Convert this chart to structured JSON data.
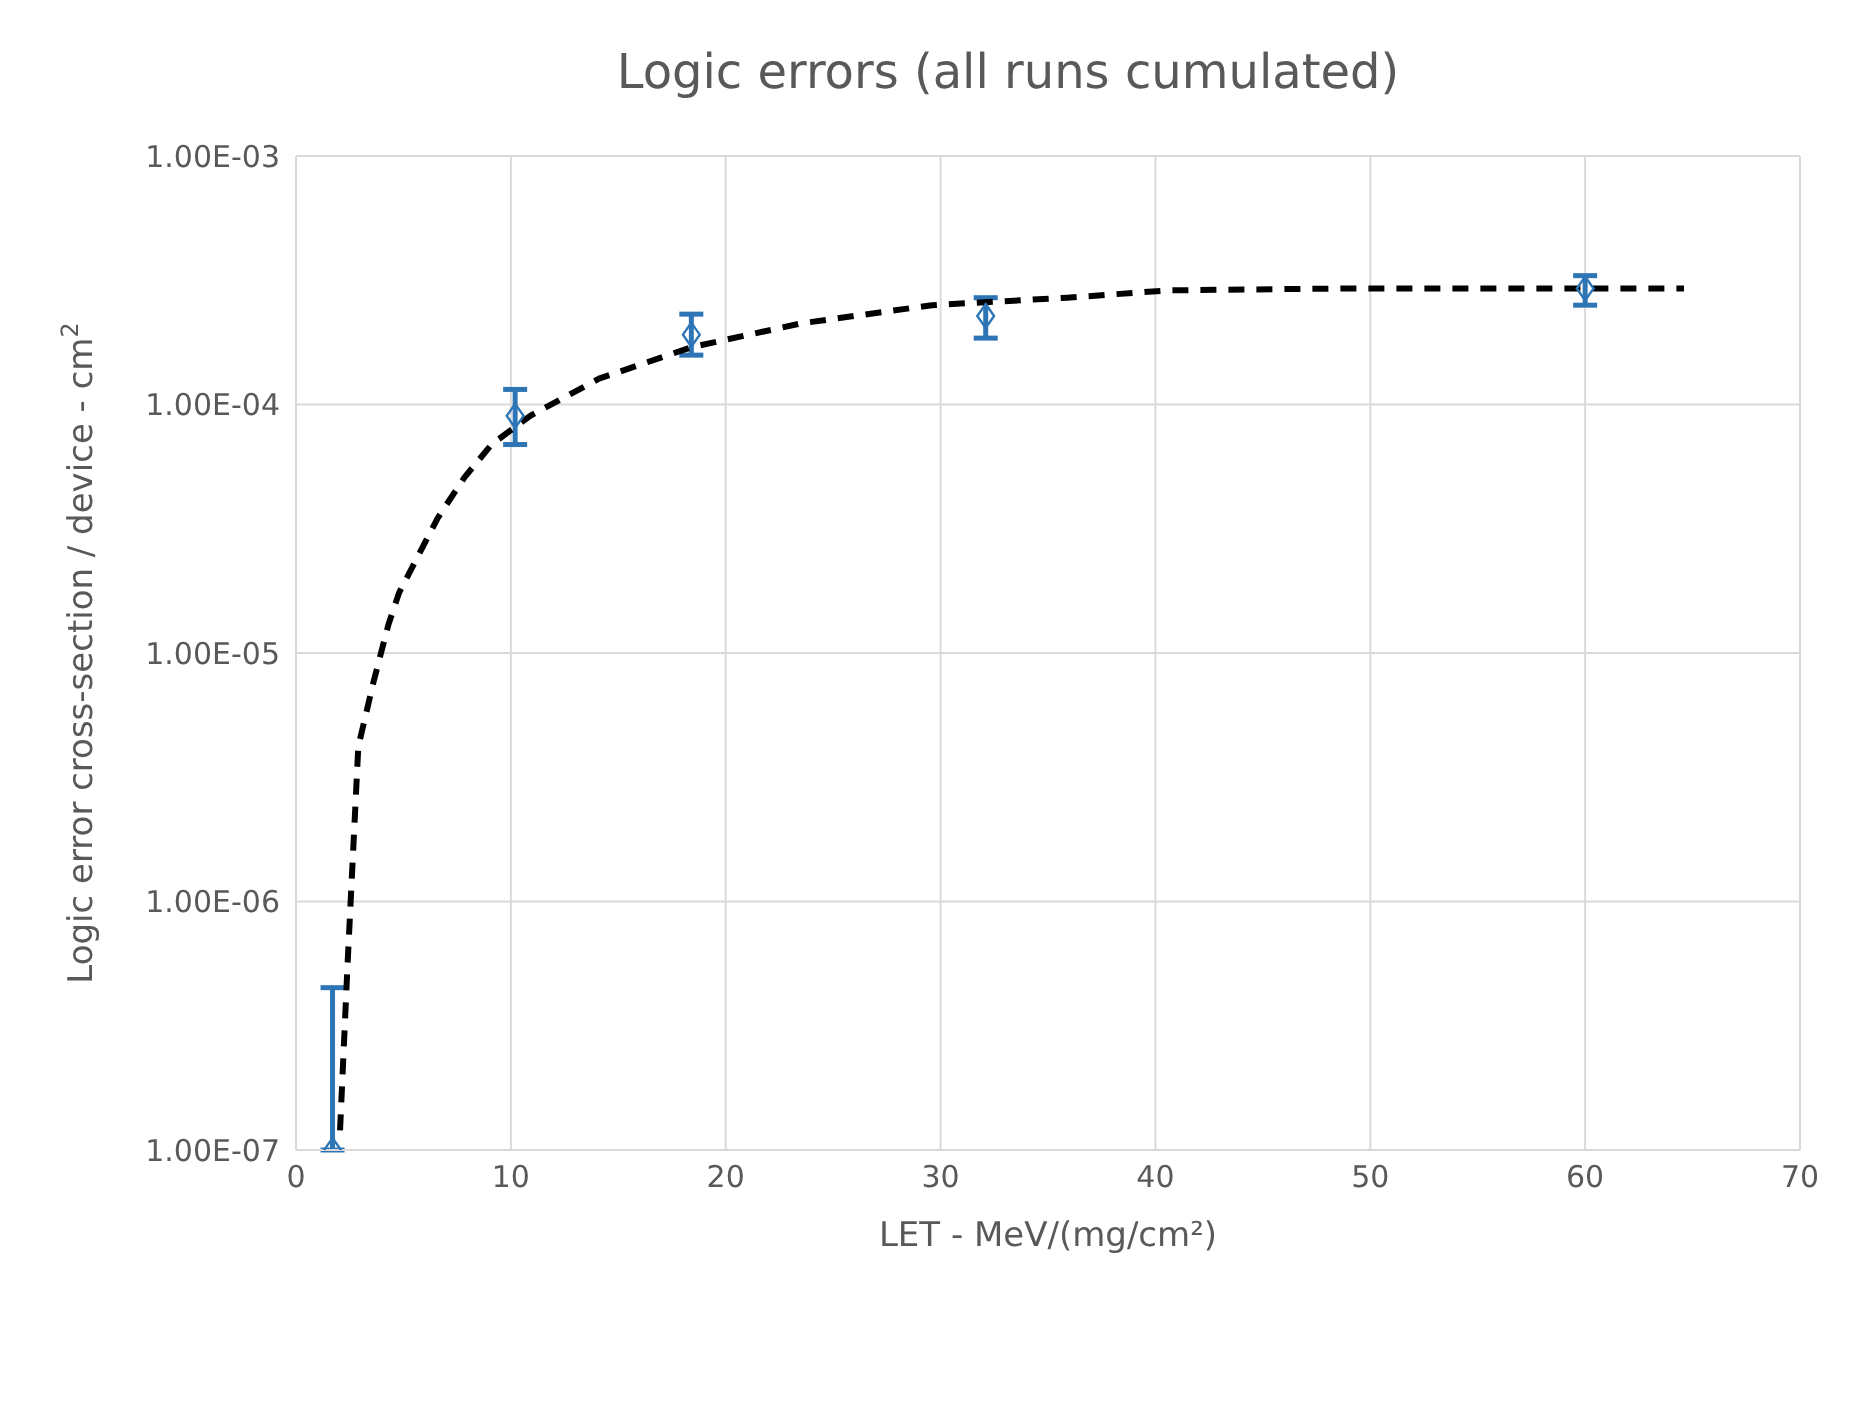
{
  "chart_data": {
    "type": "scatter",
    "title": "Logic errors (all runs cumulated)",
    "xlabel": "LET  -  MeV/(mg/cm²)",
    "ylabel": "Logic error cross-section / device  -  cm$^{2}$",
    "log": "y",
    "grid": true,
    "xlim": [
      0,
      70
    ],
    "xticks": [
      0,
      10,
      20,
      30,
      40,
      50,
      60,
      70
    ],
    "ylim": [
      1e-07,
      0.001
    ],
    "yticks": [
      {
        "value": 1e-07,
        "label": "1.00E-07"
      },
      {
        "value": 1e-06,
        "label": "1.00E-06"
      },
      {
        "value": 1e-05,
        "label": "1.00E-05"
      },
      {
        "value": 0.0001,
        "label": "1.00E-04"
      },
      {
        "value": 0.001,
        "label": "1.00E-03"
      }
    ],
    "series": [
      {
        "type": "line",
        "color": "#000000",
        "line_style": "dashed",
        "marker": "none",
        "x": [
          2.05,
          2.4,
          2.9,
          3.6,
          4.3,
          4.8,
          6.6,
          7.85,
          9.1,
          10.9,
          14.1,
          18.4,
          23.5,
          29.6,
          35.9,
          40.6,
          48.7,
          64.6
        ],
        "values": [
          1.2e-07,
          5.6e-07,
          4.2e-06,
          7.6e-06,
          1.3e-05,
          1.75e-05,
          3.5e-05,
          5.1e-05,
          6.9e-05,
          9e-05,
          0.000127,
          0.00017,
          0.000212,
          0.000251,
          0.000269,
          0.000288,
          0.000293,
          0.000293
        ]
      },
      {
        "type": "scatter",
        "color": "#2e75b6",
        "marker": "diamond",
        "x": [
          1.7,
          10.2,
          18.4,
          32.1,
          60.0
        ],
        "values": [
          1e-07,
          9e-05,
          0.000191,
          0.000227,
          0.000293
        ],
        "errors": [
          [
            1e-07,
            4.5e-07
          ],
          [
            6.9e-05,
            0.000115
          ],
          [
            0.000158,
            0.000231
          ],
          [
            0.000185,
            0.000269
          ],
          [
            0.000251,
            0.00033
          ]
        ]
      }
    ]
  }
}
